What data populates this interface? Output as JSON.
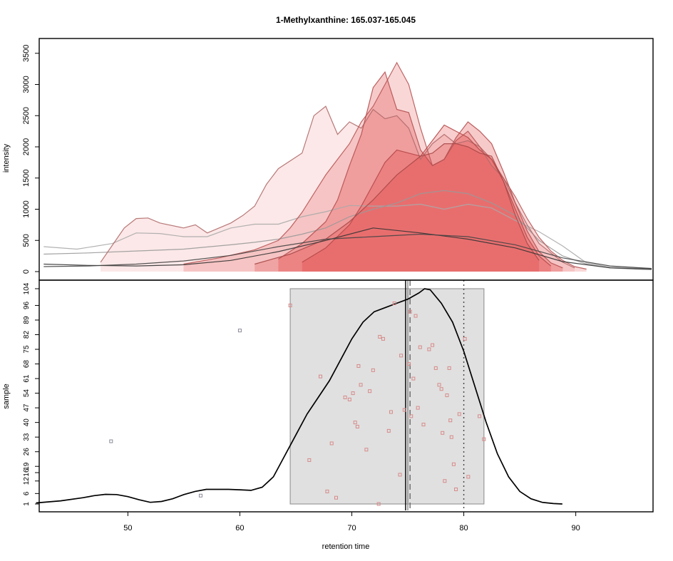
{
  "chart_data": [
    {
      "type": "line",
      "panel": "top",
      "title": "1-Methylxanthine: 165.037-165.045",
      "ylabel": "intensity",
      "ylim": [
        0,
        3600
      ],
      "xlim": [
        42,
        93.5
      ],
      "y_ticks": [
        0,
        500,
        1000,
        1500,
        2000,
        2500,
        3000,
        3500
      ],
      "description_series": "overlaid extracted ion chromatograms; grey/black traces with red shaded integrated peak regions",
      "series": [
        {
          "x": [
            42.2,
            45,
            48,
            50,
            52,
            54,
            56,
            58,
            60,
            62,
            64,
            66,
            68,
            70,
            72,
            74,
            76,
            78,
            80,
            82,
            84,
            86,
            88,
            90,
            92,
            93.5
          ],
          "values": [
            400,
            360,
            450,
            620,
            610,
            560,
            560,
            700,
            760,
            760,
            880,
            960,
            1060,
            1050,
            1050,
            1080,
            1000,
            1080,
            1020,
            820,
            640,
            410,
            140,
            70,
            60,
            50
          ]
        },
        {
          "x": [
            42.2,
            46,
            50,
            54,
            58,
            60,
            62,
            64,
            66,
            68,
            70,
            72,
            74,
            76,
            78,
            80,
            82,
            84,
            86,
            88,
            90,
            92,
            93.5
          ],
          "values": [
            280,
            300,
            330,
            360,
            430,
            470,
            520,
            600,
            700,
            880,
            1000,
            1100,
            1250,
            1300,
            1250,
            1100,
            900,
            500,
            250,
            120,
            60,
            40,
            30
          ]
        },
        {
          "x": [
            47,
            49,
            50,
            51,
            52,
            54,
            55,
            56,
            57,
            58,
            59,
            60,
            61,
            62,
            64,
            65,
            66,
            67,
            68,
            69,
            70,
            71,
            72,
            73,
            74,
            75,
            76,
            77,
            78,
            79,
            80,
            81,
            82,
            83,
            84,
            85,
            86,
            87
          ],
          "values": [
            150,
            700,
            850,
            860,
            780,
            700,
            750,
            620,
            700,
            780,
            900,
            1050,
            1400,
            1650,
            1900,
            2500,
            2650,
            2200,
            2400,
            2300,
            2600,
            2450,
            2500,
            2300,
            1800,
            2050,
            2200,
            2050,
            2100,
            2000,
            1700,
            1500,
            1100,
            750,
            450,
            300,
            150,
            60
          ]
        },
        {
          "x": [
            54,
            57,
            60,
            62,
            63,
            64,
            65,
            66,
            67,
            68,
            69,
            70,
            71,
            72,
            73,
            74,
            75,
            76,
            77,
            78,
            79,
            80,
            81,
            82,
            83,
            84,
            85,
            86,
            87,
            88
          ],
          "values": [
            120,
            220,
            350,
            500,
            700,
            950,
            1250,
            1550,
            1800,
            2050,
            2400,
            2650,
            3000,
            3350,
            3000,
            2300,
            1700,
            1800,
            2100,
            2250,
            2000,
            1800,
            1500,
            1200,
            850,
            550,
            330,
            180,
            80,
            40
          ]
        },
        {
          "x": [
            62,
            64,
            66,
            67,
            68,
            69,
            70,
            71,
            72,
            73,
            74,
            75,
            76,
            77,
            78,
            79,
            80,
            81,
            82,
            83,
            84,
            85,
            86
          ],
          "values": [
            200,
            450,
            800,
            1150,
            1700,
            2200,
            2950,
            3200,
            2600,
            2550,
            1950,
            1700,
            1800,
            2150,
            2400,
            2250,
            2050,
            1600,
            1100,
            650,
            320,
            140,
            60
          ]
        },
        {
          "x": [
            64,
            66,
            68,
            69,
            70,
            71,
            72,
            73,
            74,
            75,
            76,
            77,
            78,
            79,
            80,
            81,
            82,
            83,
            84,
            85
          ],
          "values": [
            150,
            380,
            750,
            1050,
            1400,
            1750,
            1950,
            1900,
            1850,
            2100,
            2350,
            2250,
            2150,
            1950,
            1800,
            1450,
            1000,
            550,
            250,
            90
          ]
        },
        {
          "x": [
            60,
            63,
            66,
            68,
            70,
            72,
            74,
            75,
            76,
            77,
            78,
            79,
            80,
            81,
            82,
            83,
            84
          ],
          "values": [
            120,
            280,
            520,
            800,
            1150,
            1550,
            1850,
            1900,
            2050,
            2050,
            2000,
            1900,
            1850,
            1450,
            900,
            450,
            180
          ]
        },
        {
          "x": [
            42.2,
            46,
            50,
            54,
            58,
            62,
            66,
            70,
            74,
            78,
            82,
            86,
            90,
            93.5
          ],
          "values": [
            120,
            100,
            90,
            110,
            180,
            320,
            500,
            700,
            620,
            520,
            380,
            160,
            60,
            40
          ]
        },
        {
          "x": [
            42.2,
            46,
            50,
            54,
            58,
            62,
            66,
            70,
            74,
            78,
            82,
            86,
            90,
            93.5
          ],
          "values": [
            80,
            90,
            120,
            170,
            260,
            400,
            520,
            560,
            600,
            560,
            430,
            220,
            90,
            50
          ]
        }
      ]
    },
    {
      "type": "scatter",
      "panel": "bottom",
      "xlabel": "retention time",
      "ylabel": "sample",
      "xlim": [
        41,
        95.5
      ],
      "ylim": [
        -2,
        108
      ],
      "x_ticks": [
        50,
        60,
        70,
        80,
        90
      ],
      "y_ticks": [
        1,
        6,
        12,
        16,
        19,
        26,
        33,
        40,
        47,
        54,
        61,
        68,
        75,
        82,
        89,
        96,
        104
      ],
      "peak_range_box": {
        "x": [
          64.5,
          81.8
        ],
        "y": [
          1,
          104
        ]
      },
      "vertical_lines": [
        {
          "style": "solid",
          "x": 74.8
        },
        {
          "style": "solid-grey",
          "x": 75.0
        },
        {
          "style": "dashed",
          "x": 75.2
        },
        {
          "style": "dotted",
          "x": 80.0
        }
      ],
      "density": {
        "x": [
          41.8,
          44,
          46,
          47,
          48,
          49,
          50,
          51,
          52,
          53,
          54,
          55,
          56,
          57,
          58,
          59,
          60,
          61,
          62,
          63,
          64,
          65,
          66,
          67,
          68,
          69,
          70,
          71,
          72,
          73,
          74,
          75,
          76,
          76.5,
          77,
          78,
          79,
          80,
          81,
          82,
          83,
          84,
          85,
          86,
          87,
          88,
          88.8
        ],
        "values": [
          1.5,
          2.5,
          4,
          5,
          5.6,
          5.5,
          4.5,
          3,
          1.8,
          2.2,
          3.5,
          5.5,
          7,
          8,
          8,
          8,
          7.8,
          7.5,
          9,
          14,
          24,
          34,
          44,
          52,
          60,
          70,
          80,
          88,
          93,
          95,
          97,
          99,
          102,
          104,
          103.5,
          97,
          88,
          74,
          57,
          40,
          25,
          14,
          7,
          3.5,
          1.8,
          1.2,
          1
        ]
      },
      "points": {
        "x": [
          56.5,
          48.5,
          60,
          64.5,
          66.2,
          67.2,
          67.8,
          68.2,
          68.6,
          69.4,
          69.8,
          70.1,
          70.3,
          70.5,
          70.6,
          70.8,
          71.3,
          71.6,
          71.9,
          72.4,
          72.5,
          72.8,
          73.3,
          73.5,
          73.8,
          74.3,
          74.4,
          74.7,
          75.1,
          75.2,
          75.3,
          75.5,
          75.7,
          75.9,
          76.1,
          76.4,
          76.9,
          77.2,
          77.5,
          77.8,
          78.0,
          78.1,
          78.3,
          78.5,
          78.7,
          78.8,
          78.9,
          79.1,
          79.3,
          79.6,
          80.1,
          80.4,
          81.4,
          81.8
        ],
        "y": [
          5,
          31,
          84,
          96,
          22,
          62,
          7,
          30,
          4,
          52,
          51,
          54,
          40,
          38,
          67,
          58,
          27,
          55,
          65,
          1,
          81,
          80,
          36,
          45,
          97,
          15,
          72,
          46,
          68,
          93,
          43,
          61,
          91,
          47,
          76,
          39,
          75,
          77,
          66,
          58,
          56,
          35,
          12,
          53,
          66,
          41,
          33,
          20,
          8,
          44,
          80,
          14,
          43,
          32
        ]
      }
    }
  ]
}
